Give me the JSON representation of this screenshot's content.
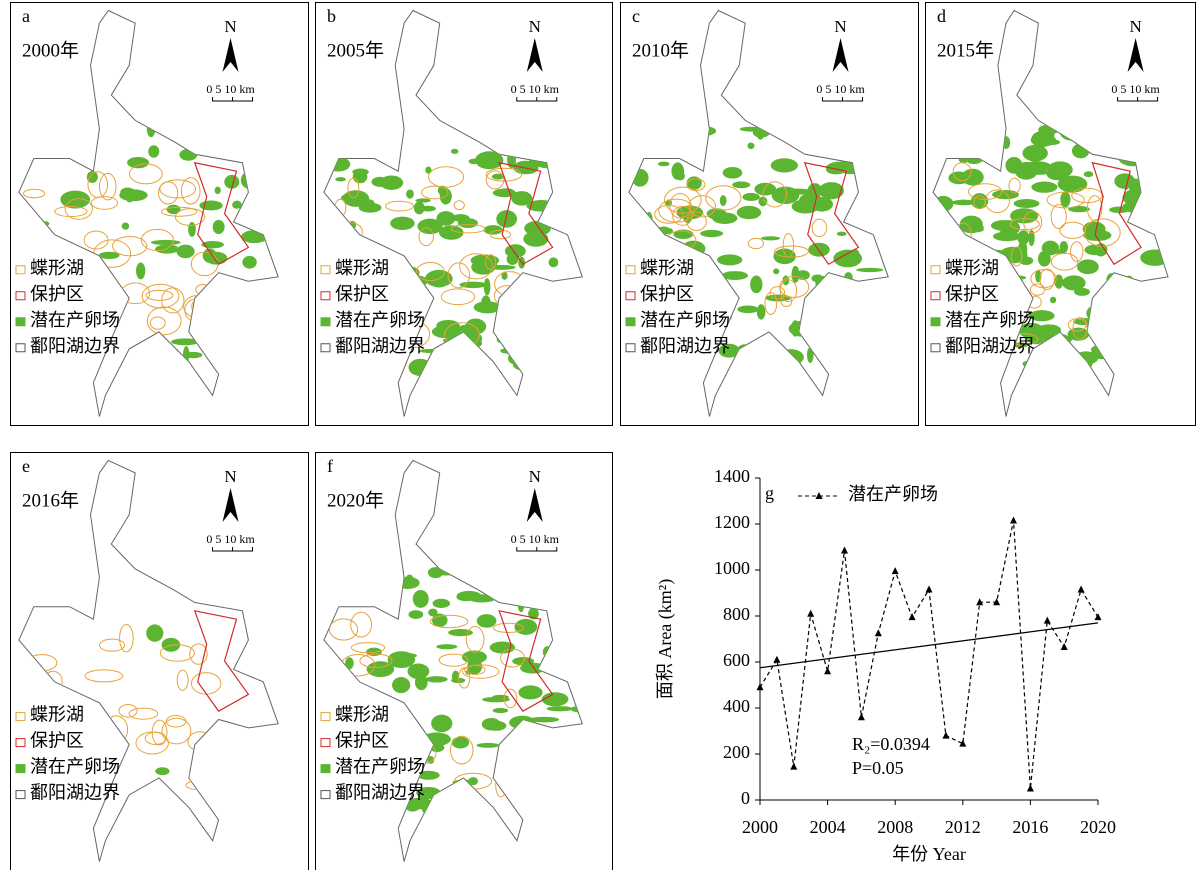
{
  "panels": [
    {
      "label": "a",
      "year": "2000年"
    },
    {
      "label": "b",
      "year": "2005年"
    },
    {
      "label": "c",
      "year": "2010年"
    },
    {
      "label": "d",
      "year": "2015年"
    },
    {
      "label": "e",
      "year": "2016年"
    },
    {
      "label": "f",
      "year": "2020年"
    }
  ],
  "north": "N",
  "scale": "0 5 10 km",
  "map_legend": [
    "蝶形湖",
    "保护区",
    "潜在产卵场",
    "鄱阳湖边界"
  ],
  "chart_data": {
    "type": "line",
    "label": "g",
    "x": [
      2000,
      2001,
      2002,
      2003,
      2004,
      2005,
      2006,
      2007,
      2008,
      2009,
      2010,
      2011,
      2012,
      2013,
      2014,
      2015,
      2016,
      2017,
      2018,
      2019,
      2020
    ],
    "series": [
      {
        "name": "潜在产卵场",
        "color": "#000000",
        "values": [
          490,
          610,
          145,
          810,
          560,
          1085,
          360,
          725,
          995,
          795,
          915,
          280,
          245,
          860,
          860,
          1215,
          50,
          780,
          665,
          915,
          795
        ]
      }
    ],
    "trend": {
      "x": [
        2000,
        2020
      ],
      "values": [
        575,
        770
      ]
    },
    "annotations": [
      "R₂=0.0394",
      "P=0.05"
    ],
    "xlabel": "年份 Year",
    "ylabel": "面积 Area (km²)",
    "xlim": [
      2000,
      2020
    ],
    "xticks": [
      2000,
      2004,
      2008,
      2012,
      2016,
      2020
    ],
    "ylim": [
      0,
      1400
    ],
    "yticks": [
      0,
      200,
      400,
      600,
      800,
      1000,
      1200,
      1400
    ]
  }
}
